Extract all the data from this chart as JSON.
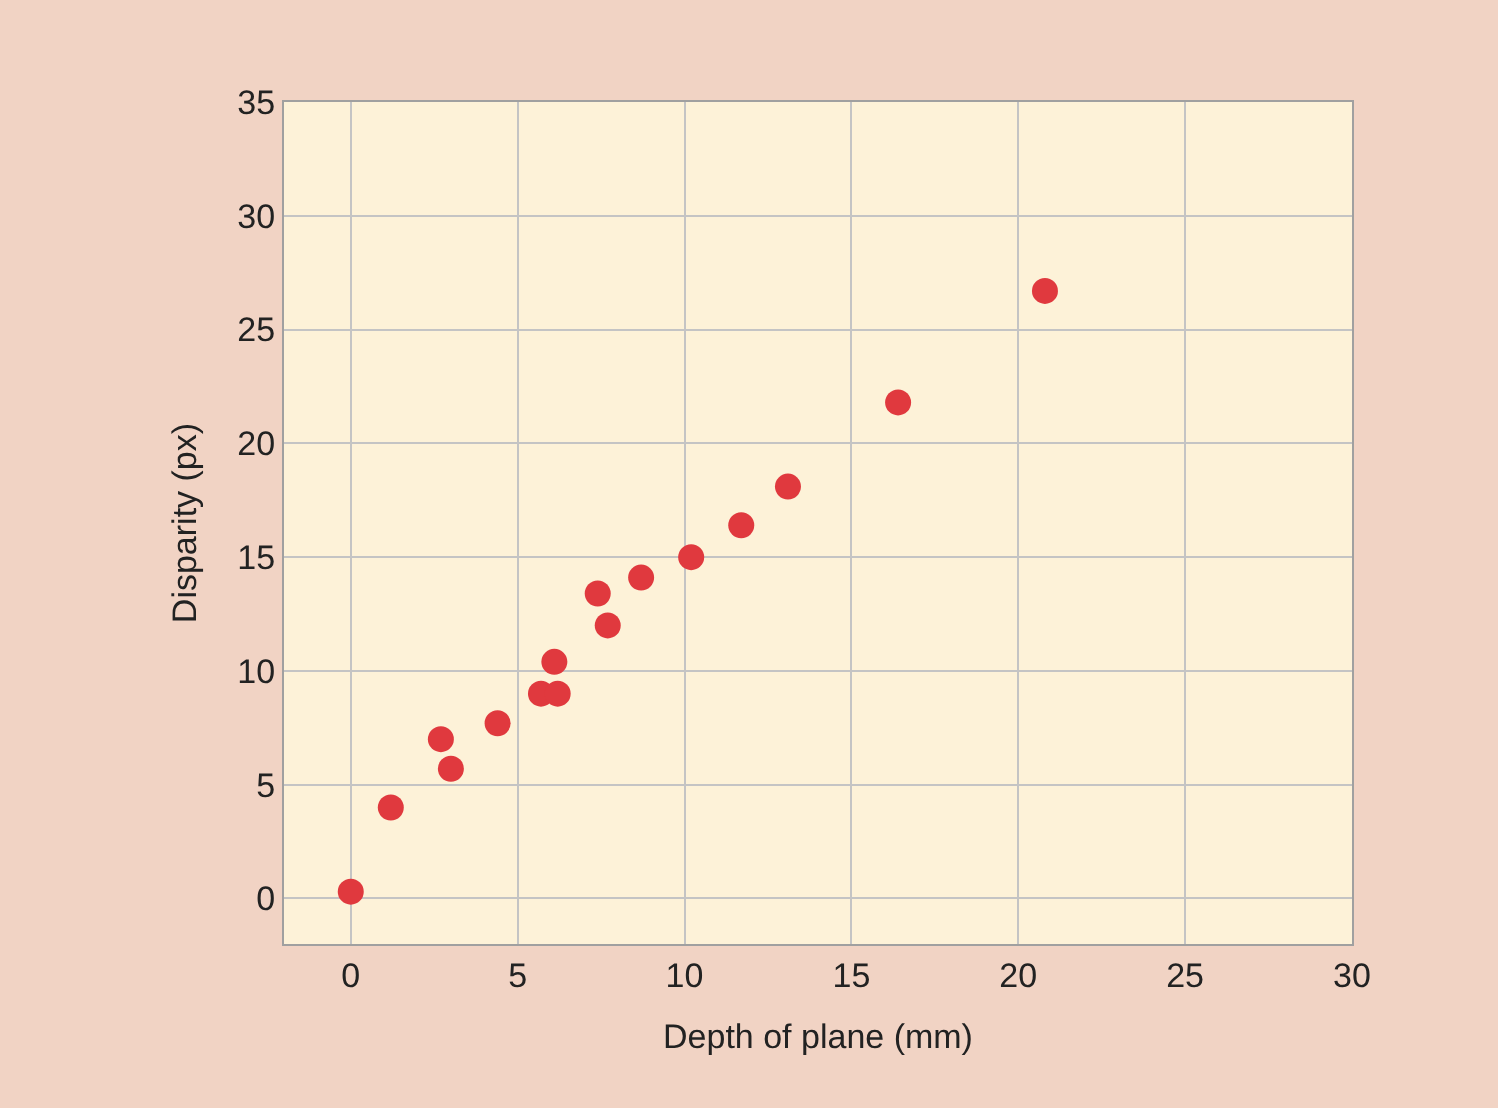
{
  "chart_data": {
    "type": "scatter",
    "xlabel": "Depth of plane (mm)",
    "ylabel": "Disparity (px)",
    "x": [
      0,
      1.2,
      2.7,
      3.0,
      4.4,
      5.7,
      6.1,
      6.2,
      7.4,
      7.7,
      8.7,
      10.2,
      11.7,
      13.1,
      16.4,
      20.8
    ],
    "series": [
      {
        "color": "#e0393e",
        "values": [
          0.3,
          4.0,
          7.0,
          5.7,
          7.7,
          9.0,
          10.4,
          9.0,
          13.4,
          12.0,
          14.1,
          15.0,
          16.4,
          18.1,
          21.8,
          26.7
        ]
      }
    ],
    "xlim": [
      -2,
      30
    ],
    "xticks": [
      0,
      5,
      10,
      15,
      20,
      25,
      30
    ],
    "ylim": [
      -2,
      35
    ],
    "yticks": [
      0,
      5,
      10,
      15,
      20,
      25,
      30,
      35
    ],
    "grid": true,
    "marker": "circle",
    "legend": false
  }
}
